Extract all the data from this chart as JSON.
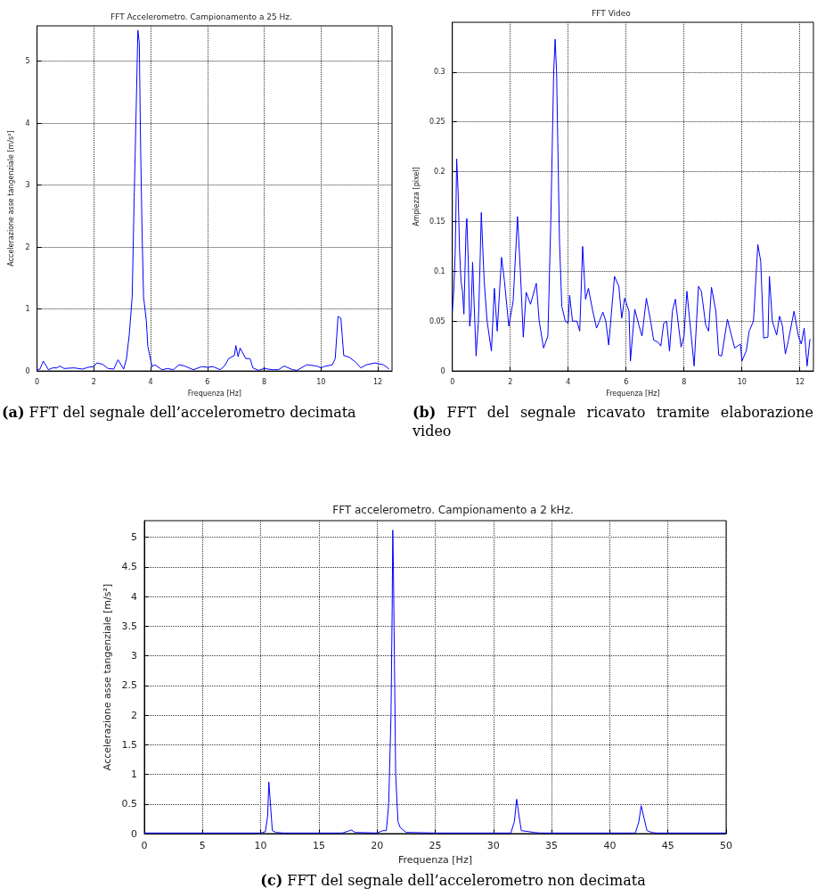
{
  "chart_data": [
    {
      "type": "line",
      "title": "FFT Accelerometro. Campionamento a 25 Hz.",
      "xlabel": "Frequenza [Hz]",
      "ylabel": "Accelerazione asse tangenziale [m/s²]",
      "xlim": [
        0,
        12.5
      ],
      "ylim": [
        0,
        5.57
      ],
      "xticks": [
        0,
        2,
        4,
        6,
        8,
        10,
        12
      ],
      "yticks": [
        0,
        1,
        2,
        3,
        4,
        5
      ],
      "grid": true,
      "marker": "none",
      "line_style": "solid",
      "annotations": [
        "(a) FFT del segnale dell’accelerometro decimata"
      ],
      "series": [
        {
          "color": "#0000ff",
          "x": [
            0,
            0.1,
            0.22,
            0.4,
            0.55,
            0.7,
            0.8,
            0.95,
            1.3,
            1.6,
            1.8,
            2.0,
            2.1,
            2.3,
            2.5,
            2.7,
            2.85,
            3.05,
            3.15,
            3.25,
            3.35,
            3.42,
            3.48,
            3.55,
            3.6,
            3.65,
            3.7,
            3.75,
            3.85,
            3.9,
            4.05,
            4.15,
            4.4,
            4.6,
            4.8,
            5.0,
            5.2,
            5.5,
            5.8,
            6.0,
            6.2,
            6.45,
            6.6,
            6.75,
            6.95,
            7.0,
            7.08,
            7.15,
            7.35,
            7.5,
            7.6,
            7.8,
            8.0,
            8.3,
            8.5,
            8.7,
            9.0,
            9.15,
            9.5,
            9.85,
            10.0,
            10.1,
            10.4,
            10.5,
            10.6,
            10.7,
            10.8,
            11.0,
            11.2,
            11.4,
            11.6,
            11.9,
            12.2,
            12.4
          ],
          "values": [
            0.02,
            0.03,
            0.16,
            0.02,
            0.05,
            0.05,
            0.08,
            0.04,
            0.05,
            0.03,
            0.06,
            0.07,
            0.13,
            0.11,
            0.04,
            0.03,
            0.18,
            0.03,
            0.2,
            0.6,
            1.2,
            2.8,
            4.0,
            5.5,
            5.3,
            3.5,
            2.2,
            1.2,
            0.8,
            0.4,
            0.07,
            0.1,
            0.02,
            0.04,
            0.02,
            0.1,
            0.08,
            0.02,
            0.07,
            0.06,
            0.07,
            0.02,
            0.08,
            0.2,
            0.25,
            0.41,
            0.23,
            0.37,
            0.2,
            0.2,
            0.05,
            0.01,
            0.04,
            0.02,
            0.02,
            0.08,
            0.02,
            0.01,
            0.1,
            0.08,
            0.05,
            0.07,
            0.1,
            0.2,
            0.88,
            0.85,
            0.25,
            0.22,
            0.15,
            0.05,
            0.1,
            0.13,
            0.1,
            0.03
          ]
        }
      ]
    },
    {
      "type": "line",
      "title": "FFT Video",
      "xlabel": "Frequenza [Hz]",
      "ylabel": "Ampiezza [pixel]",
      "xlim": [
        0,
        12.47
      ],
      "ylim": [
        0,
        0.35
      ],
      "xticks": [
        0,
        2,
        4,
        6,
        8,
        10,
        12
      ],
      "yticks": [
        0,
        0.05,
        0.1,
        0.15,
        0.2,
        0.25,
        0.3
      ],
      "grid": true,
      "marker": "none",
      "line_style": "solid",
      "annotations": [
        "(b) FFT del segnale ricavato tramite elaborazione video"
      ],
      "series": [
        {
          "color": "#0000ff",
          "x": [
            0,
            0.05,
            0.1,
            0.12,
            0.15,
            0.2,
            0.25,
            0.3,
            0.35,
            0.4,
            0.47,
            0.5,
            0.55,
            0.6,
            0.65,
            0.7,
            0.75,
            0.82,
            0.9,
            0.95,
            1.0,
            1.1,
            1.2,
            1.35,
            1.45,
            1.55,
            1.7,
            1.8,
            1.95,
            2.1,
            2.25,
            2.35,
            2.45,
            2.55,
            2.7,
            2.9,
            3.0,
            3.15,
            3.3,
            3.4,
            3.5,
            3.55,
            3.6,
            3.7,
            3.78,
            3.9,
            4.0,
            4.05,
            4.15,
            4.3,
            4.4,
            4.5,
            4.6,
            4.7,
            4.85,
            4.98,
            5.2,
            5.3,
            5.4,
            5.6,
            5.75,
            5.85,
            5.95,
            6.1,
            6.15,
            6.3,
            6.45,
            6.55,
            6.7,
            6.85,
            6.95,
            7.1,
            7.2,
            7.3,
            7.4,
            7.5,
            7.6,
            7.7,
            7.9,
            8.0,
            8.1,
            8.2,
            8.35,
            8.5,
            8.6,
            8.75,
            8.85,
            8.95,
            9.1,
            9.2,
            9.3,
            9.5,
            9.6,
            9.75,
            9.95,
            10.0,
            10.15,
            10.25,
            10.4,
            10.55,
            10.65,
            10.75,
            10.9,
            10.95,
            11.05,
            11.2,
            11.3,
            11.4,
            11.5,
            11.6,
            11.8,
            11.95,
            12.05,
            12.15,
            12.25,
            12.35
          ],
          "values": [
            0.06,
            0.08,
            0.12,
            0.155,
            0.213,
            0.18,
            0.12,
            0.09,
            0.08,
            0.057,
            0.14,
            0.153,
            0.11,
            0.045,
            0.06,
            0.109,
            0.07,
            0.015,
            0.05,
            0.1,
            0.159,
            0.09,
            0.05,
            0.02,
            0.083,
            0.04,
            0.114,
            0.09,
            0.045,
            0.07,
            0.155,
            0.1,
            0.034,
            0.079,
            0.067,
            0.088,
            0.05,
            0.023,
            0.035,
            0.15,
            0.3,
            0.333,
            0.3,
            0.13,
            0.065,
            0.05,
            0.048,
            0.076,
            0.05,
            0.05,
            0.04,
            0.125,
            0.072,
            0.083,
            0.06,
            0.043,
            0.059,
            0.05,
            0.026,
            0.095,
            0.085,
            0.053,
            0.073,
            0.06,
            0.01,
            0.062,
            0.045,
            0.035,
            0.073,
            0.05,
            0.031,
            0.029,
            0.025,
            0.048,
            0.05,
            0.02,
            0.06,
            0.072,
            0.024,
            0.035,
            0.08,
            0.05,
            0.005,
            0.085,
            0.08,
            0.046,
            0.04,
            0.084,
            0.06,
            0.016,
            0.015,
            0.052,
            0.04,
            0.023,
            0.027,
            0.01,
            0.02,
            0.04,
            0.05,
            0.127,
            0.11,
            0.033,
            0.034,
            0.095,
            0.05,
            0.036,
            0.055,
            0.045,
            0.017,
            0.03,
            0.06,
            0.035,
            0.027,
            0.043,
            0.005,
            0.032
          ]
        }
      ]
    },
    {
      "type": "line",
      "title": "FFT accelerometro. Campionamento a 2 kHz.",
      "xlabel": "Frequenza [Hz]",
      "ylabel": "Accelerazione asse tangenziale [m/s²]",
      "xlim": [
        0,
        50
      ],
      "ylim": [
        0,
        5.28
      ],
      "xticks": [
        0,
        5,
        10,
        15,
        20,
        25,
        30,
        35,
        40,
        45,
        50
      ],
      "yticks": [
        0,
        0.5,
        1,
        1.5,
        2,
        2.5,
        3,
        3.5,
        4,
        4.5,
        5
      ],
      "grid": true,
      "marker": "none",
      "line_style": "solid",
      "annotations": [
        "(c) FFT del segnale dell’accelerometro non decimata"
      ],
      "series": [
        {
          "color": "#0000ff",
          "x": [
            0,
            10,
            10.4,
            10.6,
            10.7,
            10.8,
            11.0,
            11.3,
            12,
            17,
            17.5,
            17.8,
            18.1,
            20,
            20.5,
            20.8,
            21.0,
            21.2,
            21.3,
            21.35,
            21.4,
            21.5,
            21.6,
            21.8,
            22.0,
            22.5,
            25,
            31.5,
            31.8,
            32.0,
            32.2,
            32.4,
            33.5,
            34,
            42.2,
            42.5,
            42.7,
            42.9,
            43.2,
            43.6,
            44,
            50
          ],
          "values": [
            0.01,
            0.01,
            0.03,
            0.3,
            0.87,
            0.6,
            0.05,
            0.02,
            0.01,
            0.01,
            0.04,
            0.06,
            0.02,
            0.01,
            0.05,
            0.05,
            0.5,
            2.0,
            3.8,
            5.12,
            4.6,
            2.8,
            1.0,
            0.2,
            0.1,
            0.02,
            0.01,
            0.01,
            0.2,
            0.58,
            0.3,
            0.05,
            0.02,
            0.01,
            0.01,
            0.2,
            0.47,
            0.3,
            0.05,
            0.02,
            0.01,
            0.01
          ]
        }
      ]
    }
  ]
}
